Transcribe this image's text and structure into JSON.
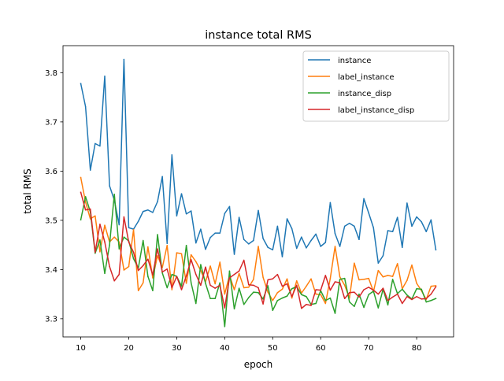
{
  "chart_data": {
    "type": "line",
    "title": "instance total RMS",
    "xlabel": "epoch",
    "ylabel": "total RMS",
    "xlim": [
      6.3,
      87.7
    ],
    "ylim": [
      3.263,
      3.855
    ],
    "xticks": [
      10,
      20,
      30,
      40,
      50,
      60,
      70,
      80
    ],
    "yticks": [
      3.3,
      3.4,
      3.5,
      3.6,
      3.7,
      3.8
    ],
    "ytick_labels": [
      "3.3",
      "3.4",
      "3.5",
      "3.6",
      "3.7",
      "3.8"
    ],
    "grid": false,
    "legend_position": "upper right",
    "x": [
      10,
      11,
      12,
      13,
      14,
      15,
      16,
      17,
      18,
      19,
      20,
      21,
      22,
      23,
      24,
      25,
      26,
      27,
      28,
      29,
      30,
      31,
      32,
      33,
      34,
      35,
      36,
      37,
      38,
      39,
      40,
      41,
      42,
      43,
      44,
      45,
      46,
      47,
      48,
      49,
      50,
      51,
      52,
      53,
      54,
      55,
      56,
      57,
      58,
      59,
      60,
      61,
      62,
      63,
      64,
      65,
      66,
      67,
      68,
      69,
      70,
      71,
      72,
      73,
      74,
      75,
      76,
      77,
      78,
      79,
      80,
      81,
      82,
      83,
      84
    ],
    "series": [
      {
        "name": "instance",
        "color": "#1f77b4",
        "values": [
          3.778,
          3.731,
          3.602,
          3.656,
          3.651,
          3.793,
          3.57,
          3.541,
          3.491,
          3.827,
          3.485,
          3.482,
          3.498,
          3.518,
          3.521,
          3.516,
          3.538,
          3.589,
          3.453,
          3.633,
          3.509,
          3.554,
          3.513,
          3.519,
          3.454,
          3.482,
          3.441,
          3.465,
          3.474,
          3.474,
          3.514,
          3.528,
          3.431,
          3.506,
          3.461,
          3.452,
          3.459,
          3.52,
          3.463,
          3.445,
          3.44,
          3.488,
          3.426,
          3.503,
          3.483,
          3.443,
          3.466,
          3.444,
          3.459,
          3.472,
          3.447,
          3.455,
          3.536,
          3.473,
          3.447,
          3.488,
          3.494,
          3.488,
          3.461,
          3.544,
          3.515,
          3.485,
          3.413,
          3.428,
          3.479,
          3.477,
          3.506,
          3.445,
          3.535,
          3.488,
          3.507,
          3.497,
          3.477,
          3.501,
          3.44
        ]
      },
      {
        "name": "label_instance",
        "color": "#ff7f0e",
        "values": [
          3.587,
          3.537,
          3.503,
          3.509,
          3.436,
          3.49,
          3.456,
          3.466,
          3.456,
          3.399,
          3.406,
          3.481,
          3.357,
          3.373,
          3.446,
          3.383,
          3.428,
          3.404,
          3.449,
          3.359,
          3.434,
          3.432,
          3.372,
          3.43,
          3.416,
          3.398,
          3.375,
          3.407,
          3.371,
          3.415,
          3.35,
          3.388,
          3.359,
          3.392,
          3.363,
          3.364,
          3.38,
          3.447,
          3.384,
          3.354,
          3.337,
          3.353,
          3.36,
          3.381,
          3.342,
          3.377,
          3.352,
          3.366,
          3.381,
          3.35,
          3.349,
          3.331,
          3.382,
          3.447,
          3.385,
          3.368,
          3.342,
          3.413,
          3.379,
          3.38,
          3.382,
          3.355,
          3.398,
          3.385,
          3.388,
          3.386,
          3.412,
          3.361,
          3.378,
          3.409,
          3.372,
          3.357,
          3.339,
          3.366,
          3.367
        ]
      },
      {
        "name": "instance_disp",
        "color": "#2ca02c",
        "values": [
          3.501,
          3.548,
          3.517,
          3.433,
          3.46,
          3.392,
          3.45,
          3.553,
          3.442,
          3.466,
          3.458,
          3.422,
          3.403,
          3.459,
          3.386,
          3.357,
          3.471,
          3.393,
          3.363,
          3.39,
          3.386,
          3.366,
          3.449,
          3.373,
          3.331,
          3.41,
          3.372,
          3.341,
          3.341,
          3.373,
          3.284,
          3.397,
          3.32,
          3.362,
          3.329,
          3.343,
          3.354,
          3.353,
          3.34,
          3.367,
          3.317,
          3.337,
          3.342,
          3.346,
          3.361,
          3.365,
          3.349,
          3.345,
          3.329,
          3.331,
          3.357,
          3.337,
          3.342,
          3.311,
          3.38,
          3.382,
          3.334,
          3.325,
          3.35,
          3.323,
          3.349,
          3.356,
          3.322,
          3.36,
          3.328,
          3.38,
          3.351,
          3.36,
          3.348,
          3.34,
          3.361,
          3.36,
          3.334,
          3.337,
          3.341
        ]
      },
      {
        "name": "label_instance_disp",
        "color": "#d62728",
        "values": [
          3.557,
          3.521,
          3.523,
          3.435,
          3.492,
          3.456,
          3.406,
          3.377,
          3.39,
          3.507,
          3.456,
          3.435,
          3.398,
          3.408,
          3.421,
          3.389,
          3.442,
          3.395,
          3.401,
          3.363,
          3.386,
          3.359,
          3.387,
          3.42,
          3.39,
          3.368,
          3.405,
          3.368,
          3.362,
          3.368,
          3.322,
          3.383,
          3.39,
          3.397,
          3.419,
          3.369,
          3.368,
          3.363,
          3.33,
          3.379,
          3.381,
          3.39,
          3.366,
          3.371,
          3.345,
          3.368,
          3.321,
          3.329,
          3.327,
          3.359,
          3.358,
          3.388,
          3.358,
          3.375,
          3.373,
          3.341,
          3.353,
          3.354,
          3.344,
          3.359,
          3.364,
          3.358,
          3.35,
          3.362,
          3.337,
          3.344,
          3.35,
          3.331,
          3.345,
          3.339,
          3.345,
          3.34,
          3.341,
          3.35,
          3.365
        ]
      }
    ]
  }
}
